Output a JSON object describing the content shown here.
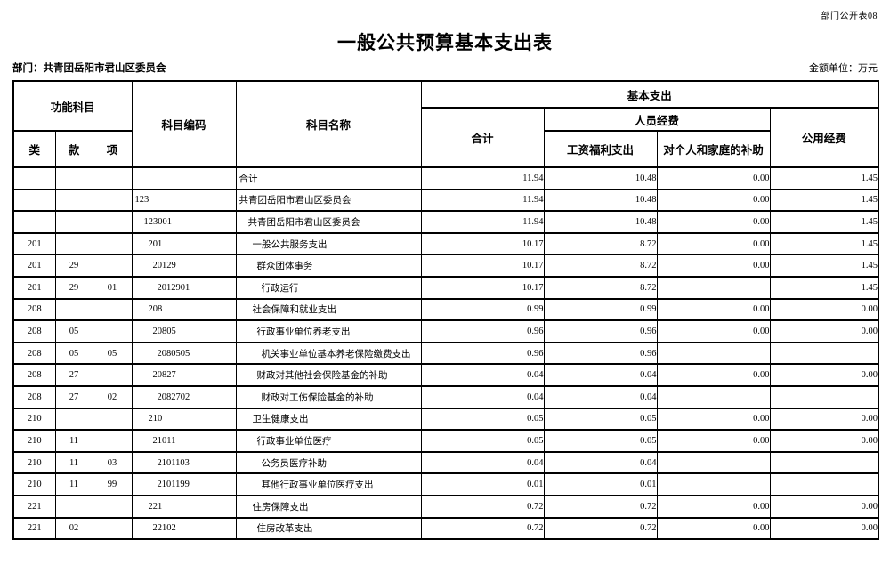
{
  "page": {
    "doc_label": "部门公开表08",
    "title": "一般公共预算基本支出表",
    "department": "部门：共青团岳阳市君山区委员会",
    "unit": "金额单位：万元"
  },
  "table": {
    "headers": {
      "func_subject": "功能科目",
      "cls": "类",
      "section": "款",
      "item": "项",
      "code": "科目编码",
      "name": "科目名称",
      "basic": "基本支出",
      "total": "合计",
      "personnel": "人员经费",
      "salary": "工资福利支出",
      "family": "对个人和家庭的补助",
      "public_exp": "公用经费"
    },
    "rows": [
      {
        "cls": "",
        "sec": "",
        "item": "",
        "code": "",
        "name": "合计",
        "level": 0,
        "total": "11.94",
        "salary": "10.48",
        "family": "0.00",
        "pub": "1.45"
      },
      {
        "cls": "",
        "sec": "",
        "item": "",
        "code": "123",
        "name": "共青团岳阳市君山区委员会",
        "level": 0,
        "total": "11.94",
        "salary": "10.48",
        "family": "0.00",
        "pub": "1.45"
      },
      {
        "cls": "",
        "sec": "",
        "item": "",
        "code": "123001",
        "name": "共青团岳阳市君山区委员会",
        "level": 1,
        "total": "11.94",
        "salary": "10.48",
        "family": "0.00",
        "pub": "1.45"
      },
      {
        "cls": "201",
        "sec": "",
        "item": "",
        "code": "201",
        "name": "一般公共服务支出",
        "level": 2,
        "total": "10.17",
        "salary": "8.72",
        "family": "0.00",
        "pub": "1.45"
      },
      {
        "cls": "201",
        "sec": "29",
        "item": "",
        "code": "20129",
        "name": "群众团体事务",
        "level": 3,
        "total": "10.17",
        "salary": "8.72",
        "family": "0.00",
        "pub": "1.45"
      },
      {
        "cls": "201",
        "sec": "29",
        "item": "01",
        "code": "2012901",
        "name": "行政运行",
        "level": 4,
        "total": "10.17",
        "salary": "8.72",
        "family": "",
        "pub": "1.45"
      },
      {
        "cls": "208",
        "sec": "",
        "item": "",
        "code": "208",
        "name": "社会保障和就业支出",
        "level": 2,
        "total": "0.99",
        "salary": "0.99",
        "family": "0.00",
        "pub": "0.00"
      },
      {
        "cls": "208",
        "sec": "05",
        "item": "",
        "code": "20805",
        "name": "行政事业单位养老支出",
        "level": 3,
        "total": "0.96",
        "salary": "0.96",
        "family": "0.00",
        "pub": "0.00"
      },
      {
        "cls": "208",
        "sec": "05",
        "item": "05",
        "code": "2080505",
        "name": "机关事业单位基本养老保险缴费支出",
        "level": 4,
        "total": "0.96",
        "salary": "0.96",
        "family": "",
        "pub": ""
      },
      {
        "cls": "208",
        "sec": "27",
        "item": "",
        "code": "20827",
        "name": "财政对其他社会保险基金的补助",
        "level": 3,
        "total": "0.04",
        "salary": "0.04",
        "family": "0.00",
        "pub": "0.00"
      },
      {
        "cls": "208",
        "sec": "27",
        "item": "02",
        "code": "2082702",
        "name": "财政对工伤保险基金的补助",
        "level": 4,
        "total": "0.04",
        "salary": "0.04",
        "family": "",
        "pub": ""
      },
      {
        "cls": "210",
        "sec": "",
        "item": "",
        "code": "210",
        "name": "卫生健康支出",
        "level": 2,
        "total": "0.05",
        "salary": "0.05",
        "family": "0.00",
        "pub": "0.00"
      },
      {
        "cls": "210",
        "sec": "11",
        "item": "",
        "code": "21011",
        "name": "行政事业单位医疗",
        "level": 3,
        "total": "0.05",
        "salary": "0.05",
        "family": "0.00",
        "pub": "0.00"
      },
      {
        "cls": "210",
        "sec": "11",
        "item": "03",
        "code": "2101103",
        "name": "公务员医疗补助",
        "level": 4,
        "total": "0.04",
        "salary": "0.04",
        "family": "",
        "pub": ""
      },
      {
        "cls": "210",
        "sec": "11",
        "item": "99",
        "code": "2101199",
        "name": "其他行政事业单位医疗支出",
        "level": 4,
        "total": "0.01",
        "salary": "0.01",
        "family": "",
        "pub": ""
      },
      {
        "cls": "221",
        "sec": "",
        "item": "",
        "code": "221",
        "name": "住房保障支出",
        "level": 2,
        "total": "0.72",
        "salary": "0.72",
        "family": "0.00",
        "pub": "0.00"
      },
      {
        "cls": "221",
        "sec": "02",
        "item": "",
        "code": "22102",
        "name": "住房改革支出",
        "level": 3,
        "total": "0.72",
        "salary": "0.72",
        "family": "0.00",
        "pub": "0.00"
      }
    ]
  }
}
